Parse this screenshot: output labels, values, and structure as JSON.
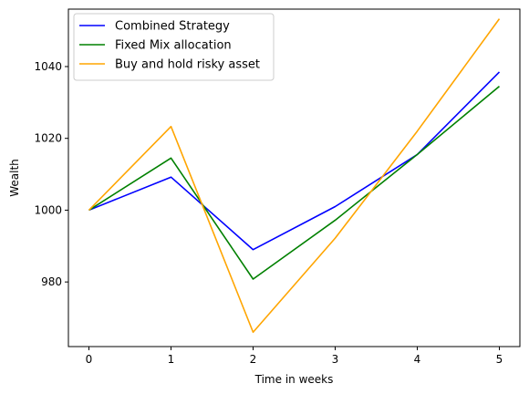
{
  "chart_data": {
    "type": "line",
    "x": [
      0,
      1,
      2,
      3,
      4,
      5
    ],
    "xlabel": "Time in weeks",
    "ylabel": "Wealth",
    "xlim": [
      -0.25,
      5.25
    ],
    "ylim": [
      962,
      1056
    ],
    "xticks": [
      0,
      1,
      2,
      3,
      4,
      5
    ],
    "yticks": [
      980,
      1000,
      1020,
      1040
    ],
    "grid": false,
    "legend_position": "top-left",
    "series": [
      {
        "name": "Combined Strategy",
        "color": "#0000ff",
        "values": [
          1000,
          1009.2,
          989,
          1001,
          1015.5,
          1038.5
        ]
      },
      {
        "name": "Fixed Mix allocation",
        "color": "#008000",
        "values": [
          1000,
          1014.5,
          980.8,
          997.2,
          1015.5,
          1034.5
        ]
      },
      {
        "name": "Buy and hold risky asset",
        "color": "#ffa500",
        "values": [
          1000,
          1023.3,
          966,
          992.2,
          1022,
          1053.3
        ]
      }
    ]
  }
}
